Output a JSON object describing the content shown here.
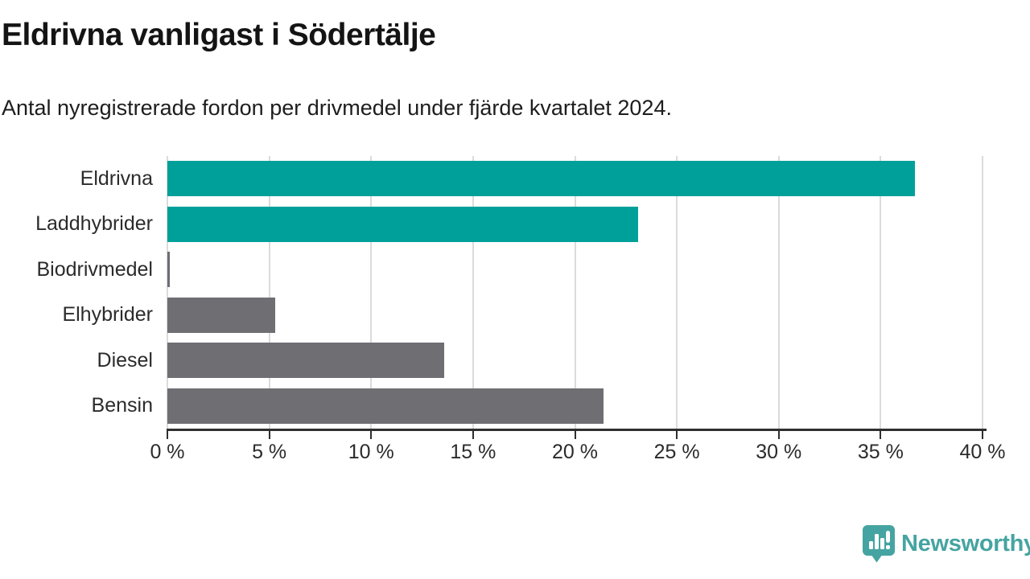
{
  "header": {
    "title": "Eldrivna vanligast i Södertälje",
    "subtitle": "Antal nyregistrerade fordon per drivmedel under fjärde kvartalet 2024."
  },
  "chart_data": {
    "type": "bar",
    "orientation": "horizontal",
    "title": "Eldrivna vanligast i Södertälje",
    "subtitle": "Antal nyregistrerade fordon per drivmedel under fjärde kvartalet 2024.",
    "categories": [
      "Eldrivna",
      "Laddhybrider",
      "Biodrivmedel",
      "Elhybrider",
      "Diesel",
      "Bensin"
    ],
    "values": [
      36.7,
      23.1,
      0.1,
      5.3,
      13.6,
      21.4
    ],
    "unit": "%",
    "xlabel": "",
    "ylabel": "",
    "xlim": [
      0,
      40
    ],
    "x_ticks": [
      0,
      5,
      10,
      15,
      20,
      25,
      30,
      35,
      40
    ],
    "x_tick_labels": [
      "0 %",
      "5 %",
      "10 %",
      "15 %",
      "20 %",
      "25 %",
      "30 %",
      "35 %",
      "40 %"
    ],
    "bar_colors": [
      "#00a09a",
      "#00a09a",
      "#6e6e73",
      "#6e6e73",
      "#6e6e73",
      "#6e6e73"
    ],
    "highlight_color": "#00a09a",
    "default_color": "#6e6e73",
    "grid": true,
    "legend": "none"
  },
  "footer": {
    "brand": "Newsworthy"
  },
  "colors": {
    "highlight_teal": "#00a09a",
    "bar_gray": "#6e6e73",
    "gridline": "#dbdbdb",
    "axis": "#2f2f2f",
    "logo_teal": "#45a4a1"
  }
}
